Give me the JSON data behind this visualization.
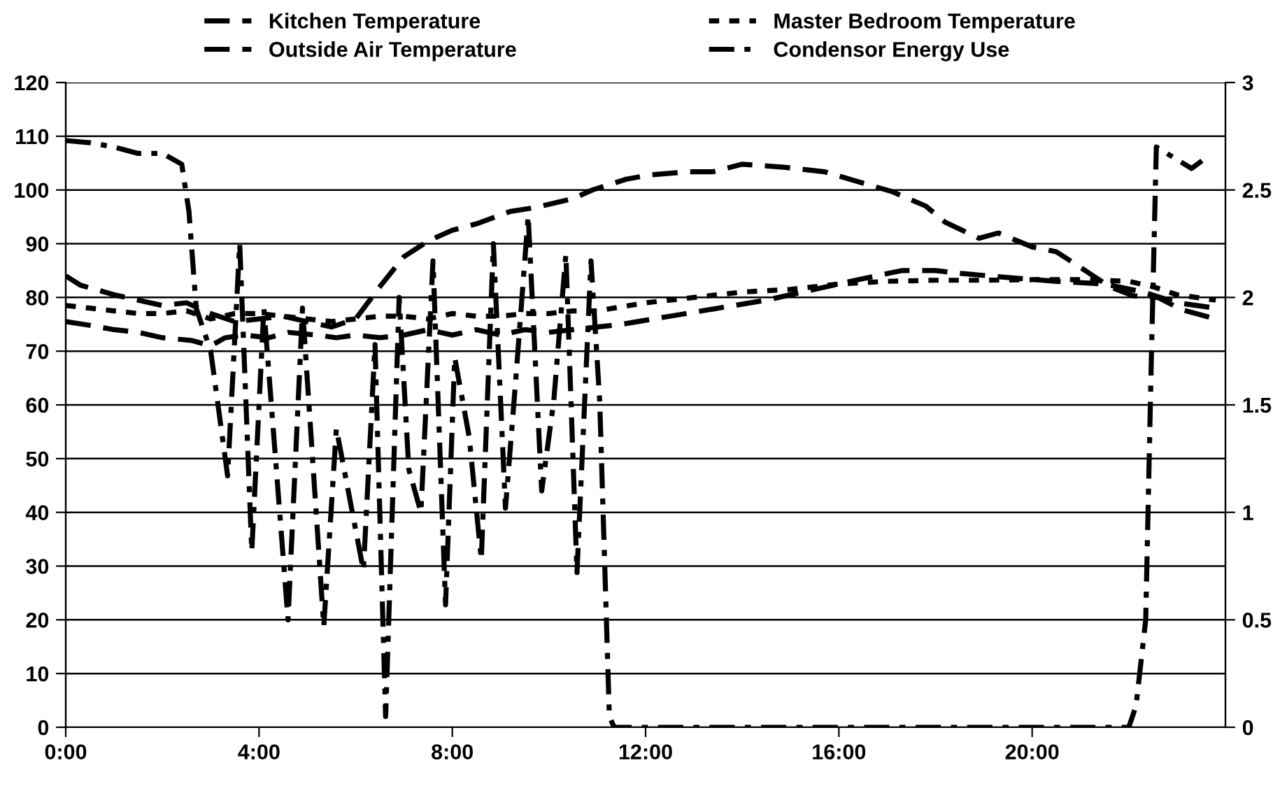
{
  "chart_data": {
    "type": "line",
    "xlim": [
      0,
      24
    ],
    "xticks": [
      {
        "value": 0,
        "label": "0:00"
      },
      {
        "value": 4,
        "label": "4:00"
      },
      {
        "value": 8,
        "label": "8:00"
      },
      {
        "value": 12,
        "label": "12:00"
      },
      {
        "value": 16,
        "label": "16:00"
      },
      {
        "value": 20,
        "label": "20:00"
      }
    ],
    "ylim": [
      0,
      120
    ],
    "yticks": [
      0,
      10,
      20,
      30,
      40,
      50,
      60,
      70,
      80,
      90,
      100,
      110,
      120
    ],
    "y2lim": [
      0,
      3
    ],
    "y2ticks": [
      0,
      0.5,
      1,
      1.5,
      2,
      2.5,
      3
    ],
    "grid": "y",
    "legend": "top",
    "marker": "none",
    "series": [
      {
        "name": "Kitchen Temperature",
        "color": "#000000",
        "line_style": "dashed",
        "x": [
          0,
          0.5,
          1,
          1.5,
          2,
          2.6,
          3,
          3.3,
          3.7,
          4.2,
          4.6,
          5.2,
          5.6,
          6,
          6.5,
          7,
          7.5,
          8,
          8.5,
          9,
          9.5,
          10,
          10.5,
          11,
          11.5,
          12.5,
          13.5,
          14.5,
          15.5,
          16.5,
          17.3,
          18,
          18.5,
          19.5,
          20.5,
          21.5,
          22.3,
          23,
          23.8
        ],
        "values": [
          75.5,
          74.8,
          74,
          73.5,
          72.5,
          72,
          71,
          72.5,
          73,
          72.5,
          73.5,
          73,
          72.5,
          73,
          72.5,
          73,
          74,
          73,
          74,
          73,
          74,
          73.5,
          74,
          74.5,
          75,
          76.5,
          78,
          79.5,
          81.5,
          83.5,
          85,
          85,
          84.5,
          83.7,
          83,
          82.5,
          81,
          79,
          78
        ]
      },
      {
        "name": "Outside Air Temperature",
        "color": "#000000",
        "line_style": "dashed",
        "x": [
          0,
          0.3,
          1,
          1.5,
          2,
          2.5,
          3,
          3.5,
          4,
          4.5,
          5,
          5.5,
          6,
          6.5,
          7,
          7.5,
          8,
          8.5,
          9.2,
          9.7,
          10.5,
          10.9,
          11.6,
          12.1,
          12.9,
          13.4,
          14,
          14.9,
          15.7,
          16.6,
          17.1,
          17.8,
          18.2,
          18.9,
          19.3,
          20,
          20.5,
          21.1,
          21.6,
          22.1,
          22.6,
          23.1,
          23.8
        ],
        "values": [
          84,
          82.3,
          80.5,
          79.5,
          78.5,
          79,
          77,
          75.5,
          76,
          76.5,
          75.5,
          74.5,
          76,
          82,
          87.6,
          90.5,
          92.5,
          93.7,
          96,
          96.7,
          98.4,
          100,
          102,
          102.8,
          103.4,
          103.4,
          104.8,
          104.2,
          103.4,
          101,
          99.7,
          97,
          94,
          91,
          92,
          89.4,
          88.5,
          85,
          82,
          80.3,
          80,
          77.7,
          76
        ]
      },
      {
        "name": "Master Bedroom Temperature",
        "color": "#000000",
        "line_style": "dotted",
        "x": [
          0,
          0.5,
          1,
          1.5,
          2,
          2.5,
          3,
          3.5,
          4,
          4.5,
          5,
          5.5,
          6,
          6.5,
          7,
          7.5,
          8,
          8.5,
          9,
          9.5,
          10,
          10.5,
          11,
          12,
          13,
          14,
          15,
          16,
          17,
          18,
          19,
          20,
          21,
          22,
          22.5,
          23,
          23.8
        ],
        "values": [
          78.5,
          78,
          77.5,
          77,
          77,
          77.5,
          76,
          77,
          77,
          76.5,
          76,
          75.5,
          76,
          76.5,
          76.5,
          76,
          77,
          76.5,
          76.5,
          77,
          77,
          77.5,
          77.5,
          79,
          80,
          81,
          81.5,
          82.5,
          83,
          83.2,
          83.2,
          83.3,
          83.3,
          83,
          82,
          80.5,
          79.5
        ]
      },
      {
        "name": "Condensor Energy Use",
        "color": "#000000",
        "line_style": "dashdot",
        "axis": "y2",
        "x": [
          0,
          0.5,
          1,
          1.5,
          2,
          2.4,
          2.55,
          2.7,
          3,
          3.35,
          3.6,
          3.85,
          4.1,
          4.6,
          4.9,
          5.34,
          5.6,
          6.16,
          6.4,
          6.62,
          6.9,
          7.1,
          7.35,
          7.6,
          7.86,
          8.05,
          8.35,
          8.6,
          8.85,
          9.1,
          9.3,
          9.57,
          9.85,
          10.1,
          10.35,
          10.58,
          10.87,
          11.05,
          11.25,
          11.35,
          12,
          14,
          16,
          18,
          20,
          22,
          22.15,
          22.35,
          22.47,
          22.57,
          23.3,
          23.6
        ],
        "values": [
          2.73,
          2.72,
          2.7,
          2.67,
          2.67,
          2.62,
          2.4,
          1.95,
          1.75,
          1.17,
          2.25,
          0.82,
          1.95,
          0.5,
          1.95,
          0.47,
          1.39,
          0.73,
          1.78,
          0.05,
          2.0,
          1.2,
          1.0,
          2.17,
          0.57,
          1.72,
          1.35,
          0.78,
          2.25,
          1.02,
          1.58,
          2.38,
          1.1,
          1.52,
          2.2,
          0.72,
          2.17,
          1.52,
          0.05,
          0,
          0,
          0,
          0,
          0,
          0,
          0,
          0.1,
          0.5,
          1.75,
          2.7,
          2.6,
          2.65
        ]
      }
    ]
  }
}
